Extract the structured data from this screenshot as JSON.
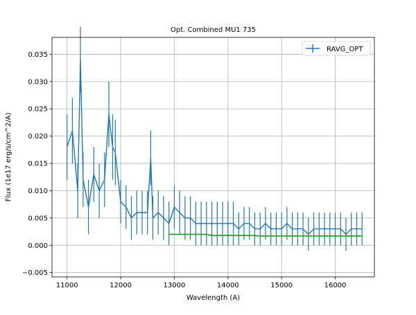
{
  "chart_data": {
    "type": "line",
    "title": "Opt. Combined MU1 735",
    "xlabel": "Wavelength (A)",
    "ylabel": "Flux (1e17 erg/s/cm^2/A)",
    "xlim": [
      10720,
      16730
    ],
    "ylim": [
      -0.0058,
      0.0381
    ],
    "xticks": [
      11000,
      12000,
      13000,
      14000,
      15000,
      16000
    ],
    "yticks": [
      -0.005,
      0.0,
      0.005,
      0.01,
      0.015,
      0.02,
      0.025,
      0.03,
      0.035
    ],
    "xtick_labels": [
      "11000",
      "12000",
      "13000",
      "14000",
      "15000",
      "16000"
    ],
    "ytick_labels": [
      "−0.005",
      "0.000",
      "0.005",
      "0.010",
      "0.015",
      "0.020",
      "0.025",
      "0.030",
      "0.035"
    ],
    "grid": true,
    "legend": {
      "position": "upper right",
      "entries": [
        "RAVG_OPT"
      ]
    },
    "series": [
      {
        "name": "RAVG_OPT",
        "color": "#1f77b4",
        "style": "line-with-errorbars",
        "x": [
          11000,
          11100,
          11200,
          11250,
          11300,
          11400,
          11500,
          11600,
          11700,
          11780,
          11850,
          11900,
          12000,
          12100,
          12200,
          12300,
          12400,
          12500,
          12560,
          12600,
          12700,
          12800,
          12900,
          13000,
          13100,
          13200,
          13300,
          13400,
          13500,
          13600,
          13700,
          13800,
          13900,
          14000,
          14100,
          14200,
          14300,
          14400,
          14500,
          14600,
          14700,
          14800,
          14900,
          15000,
          15100,
          15200,
          15300,
          15400,
          15500,
          15600,
          15700,
          15800,
          15900,
          16000,
          16100,
          16200,
          16300,
          16400,
          16500
        ],
        "y": [
          0.018,
          0.021,
          0.01,
          0.034,
          0.012,
          0.007,
          0.013,
          0.01,
          0.012,
          0.024,
          0.018,
          0.017,
          0.008,
          0.007,
          0.005,
          0.006,
          0.006,
          0.006,
          0.016,
          0.005,
          0.006,
          0.005,
          0.004,
          0.007,
          0.006,
          0.005,
          0.005,
          0.004,
          0.004,
          0.004,
          0.004,
          0.004,
          0.004,
          0.004,
          0.004,
          0.003,
          0.004,
          0.004,
          0.003,
          0.003,
          0.004,
          0.003,
          0.003,
          0.003,
          0.004,
          0.003,
          0.003,
          0.003,
          0.002,
          0.003,
          0.003,
          0.003,
          0.003,
          0.003,
          0.003,
          0.002,
          0.003,
          0.003,
          0.003
        ],
        "yerr": [
          0.006,
          0.006,
          0.005,
          0.006,
          0.005,
          0.005,
          0.005,
          0.005,
          0.005,
          0.006,
          0.006,
          0.006,
          0.004,
          0.004,
          0.004,
          0.004,
          0.004,
          0.004,
          0.005,
          0.004,
          0.004,
          0.004,
          0.004,
          0.004,
          0.004,
          0.004,
          0.004,
          0.004,
          0.004,
          0.004,
          0.004,
          0.004,
          0.004,
          0.004,
          0.004,
          0.003,
          0.003,
          0.003,
          0.003,
          0.003,
          0.003,
          0.003,
          0.003,
          0.003,
          0.003,
          0.003,
          0.003,
          0.003,
          0.003,
          0.003,
          0.003,
          0.003,
          0.003,
          0.003,
          0.003,
          0.003,
          0.003,
          0.003,
          0.003
        ]
      },
      {
        "color": "#2ca02c",
        "style": "continuum",
        "x": [
          12900,
          13600,
          13700,
          14500,
          14600,
          16500
        ],
        "y": [
          0.002,
          0.002,
          0.0018,
          0.0018,
          0.0017,
          0.0017
        ]
      }
    ]
  }
}
